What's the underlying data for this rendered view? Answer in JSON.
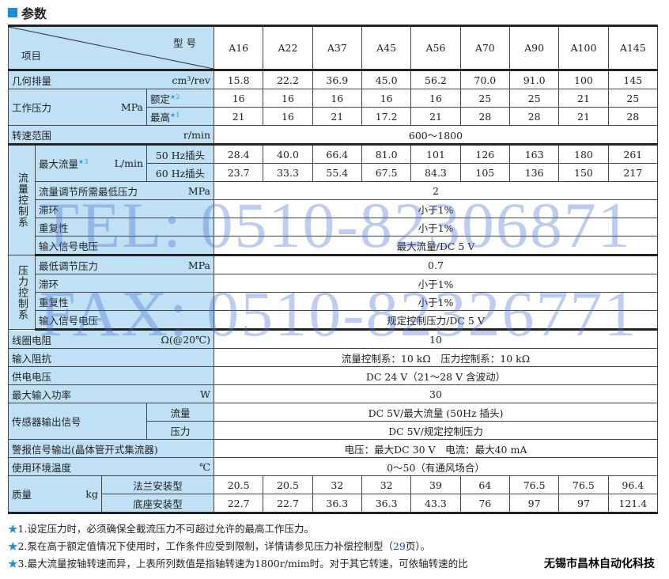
{
  "title": "参数",
  "header": {
    "model_label": "型 号",
    "item_label": "项目",
    "models": [
      "A16",
      "A22",
      "A37",
      "A45",
      "A56",
      "A70",
      "A90",
      "A100",
      "A145"
    ]
  },
  "displacement": {
    "label": "几何排量",
    "unit": "cm³/rev",
    "values": [
      "15.8",
      "22.2",
      "36.9",
      "45.0",
      "56.2",
      "70.0",
      "91.0",
      "100",
      "145"
    ]
  },
  "pressure": {
    "label": "工作压力",
    "unit": "MPa",
    "rated": {
      "label": "额定",
      "star": "★2",
      "values": [
        "16",
        "16",
        "16",
        "16",
        "16",
        "25",
        "25",
        "21",
        "25"
      ]
    },
    "max": {
      "label": "最高",
      "star": "★1",
      "values": [
        "21",
        "16",
        "21",
        "17.2",
        "21",
        "28",
        "28",
        "21",
        "28"
      ]
    }
  },
  "speed": {
    "label": "转速范围",
    "unit": "r/min",
    "value": "600～1800"
  },
  "flow_control": {
    "group": "流量控制系",
    "max_flow": {
      "label": "最大流量",
      "star": "★3",
      "unit": "L/min",
      "hz50": {
        "label": "50 Hz插头",
        "values": [
          "28.4",
          "40.0",
          "66.4",
          "81.0",
          "101",
          "126",
          "163",
          "180",
          "261"
        ]
      },
      "hz60": {
        "label": "60 Hz插头",
        "values": [
          "23.7",
          "33.3",
          "55.4",
          "67.5",
          "84.3",
          "105",
          "136",
          "150",
          "217"
        ]
      }
    },
    "min_pressure": {
      "label": "流量调节所需最低压力",
      "unit": "MPa",
      "value": "2"
    },
    "hysteresis": {
      "label": "滞环",
      "value": "小于1%"
    },
    "repeatability": {
      "label": "重复性",
      "value": "小于1%"
    },
    "input_voltage": {
      "label": "输入信号电压",
      "value": "最大流量/DC 5 V"
    }
  },
  "pressure_control": {
    "group": "压力控制系",
    "min_pressure": {
      "label": "最低调节压力",
      "unit": "MPa",
      "value": "0.7"
    },
    "hysteresis": {
      "label": "滞环",
      "value": "小于1%"
    },
    "repeatability": {
      "label": "重复性",
      "value": "小于1%"
    },
    "input_voltage": {
      "label": "输入信号电压",
      "value": "规定控制压力/DC 5 V"
    }
  },
  "coil": {
    "label": "线圈电阻",
    "unit": "Ω(@20℃)",
    "value": "10"
  },
  "impedance": {
    "label": "输入阻抗",
    "value": "流量控制系：10 kΩ　压力控制系：10 kΩ"
  },
  "supply": {
    "label": "供电电压",
    "value": "DC 24 V（21～28 V 含波动）"
  },
  "power": {
    "label": "最大输入功率",
    "unit": "W",
    "value": "30"
  },
  "sensor": {
    "label": "传感器输出信号",
    "flow": {
      "label": "流量",
      "value": "DC 5V/最大流量 (50Hz 插头)"
    },
    "pressure": {
      "label": "压力",
      "value": "DC 5V/规定控制压力"
    }
  },
  "alarm": {
    "label": "警报信号输出(晶体管开式集流器)",
    "value": "电压：最大DC 30 V　电流：最大40 mA"
  },
  "temperature": {
    "label": "使用环境温度",
    "unit": "℃",
    "value": "0～50（有通风场合）"
  },
  "mass": {
    "label": "质量",
    "unit": "kg",
    "flange": {
      "label": "法兰安装型",
      "values": [
        "20.5",
        "20.5",
        "32",
        "32",
        "39",
        "64",
        "76.5",
        "76.5",
        "96.4"
      ]
    },
    "base": {
      "label": "底座安装型",
      "values": [
        "22.7",
        "22.7",
        "36.3",
        "36.3",
        "43.3",
        "76",
        "97",
        "97",
        "121.4"
      ]
    }
  },
  "notes": [
    {
      "star": "★",
      "text": "1.设定压力时，必须确保全截流压力不可超过允许的最高工作压力。"
    },
    {
      "star": "★",
      "text": "2.泵在高于额定值情况下使用时，工作条件应受到限制，详情请参见压力补偿控制型（",
      "page": "29",
      "tail": "页）。"
    },
    {
      "star": "★",
      "text": "3.最大流量按轴转速而异，上表所列数值是指轴转速为1800r/mim时。对于其它转速，可依轴转速的比"
    }
  ],
  "company": "无锡市昌林自动化科技",
  "watermark": {
    "tel": "TEL: 0510-82306871",
    "fax": "FAX: 0510-82326771"
  }
}
